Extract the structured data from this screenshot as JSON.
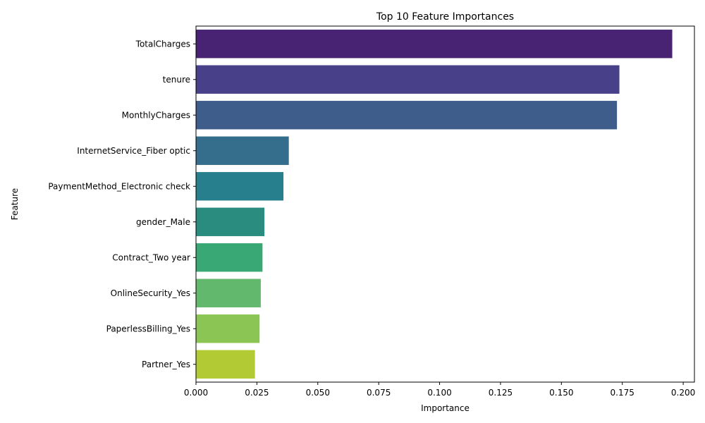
{
  "chart_data": {
    "type": "bar",
    "orientation": "horizontal",
    "title": "Top 10 Feature Importances",
    "xlabel": "Importance",
    "ylabel": "Feature",
    "xlim": [
      0,
      0.2046
    ],
    "xticks": [
      "0.000",
      "0.025",
      "0.050",
      "0.075",
      "0.100",
      "0.125",
      "0.150",
      "0.175",
      "0.200"
    ],
    "grid": false,
    "legend": "none",
    "categories": [
      "TotalCharges",
      "tenure",
      "MonthlyCharges",
      "InternetService_Fiber optic",
      "PaymentMethod_Electronic check",
      "gender_Male",
      "Contract_Two year",
      "OnlineSecurity_Yes",
      "PaperlessBilling_Yes",
      "Partner_Yes"
    ],
    "values": [
      0.1955,
      0.1738,
      0.1728,
      0.0381,
      0.0359,
      0.0281,
      0.0273,
      0.0266,
      0.0261,
      0.0242
    ],
    "colors": [
      "#482374",
      "#48418a",
      "#3f5d8a",
      "#356d8d",
      "#277f8e",
      "#2a8c7f",
      "#3aa874",
      "#62b86d",
      "#8bc654",
      "#b2cb35"
    ]
  }
}
